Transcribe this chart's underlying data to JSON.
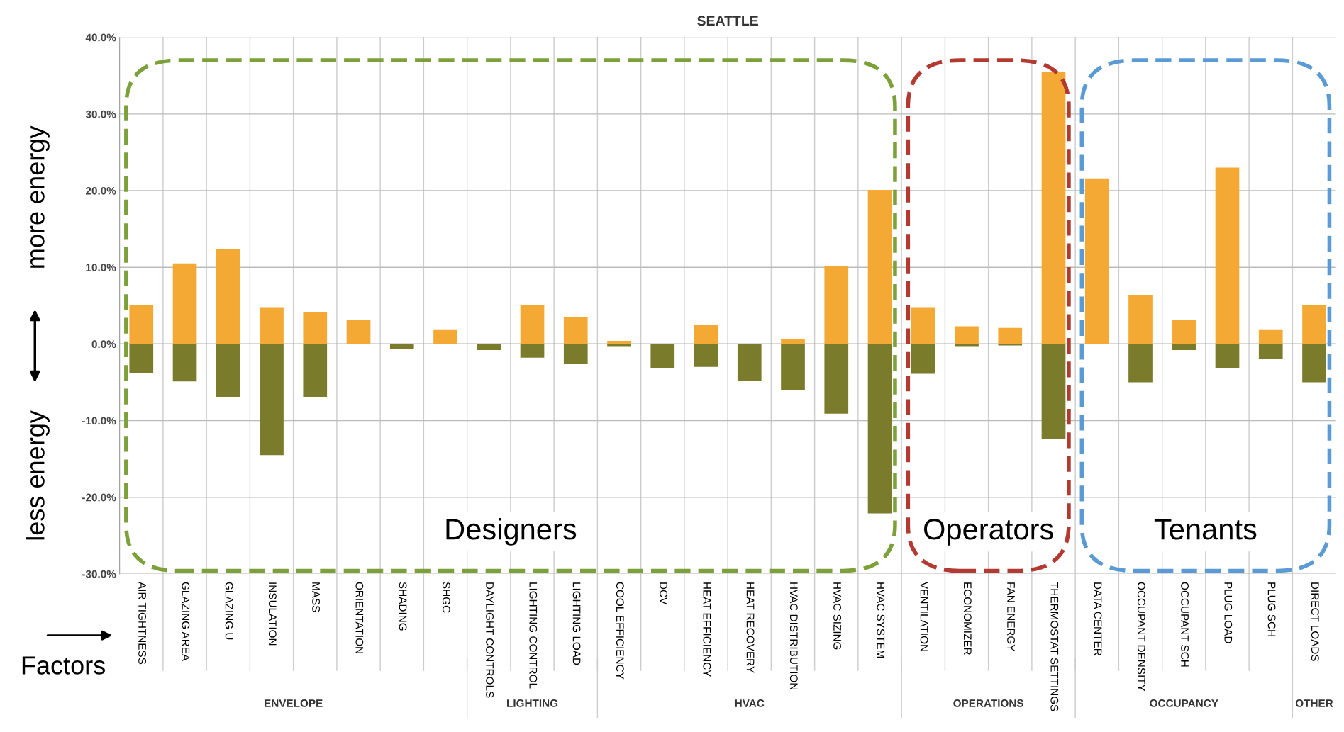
{
  "chart_data": {
    "type": "bar",
    "title": "SEATTLE",
    "categories": [
      "AIR TIGHTNESS",
      "GLAZING AREA",
      "GLAZING U",
      "INSULATION",
      "MASS",
      "ORIENTATION",
      "SHADING",
      "SHGC",
      "DAYLIGHT CONTROLS",
      "LIGHTING CONTROL",
      "LIGHTING LOAD",
      "COOL EFFICIENCY",
      "DCV",
      "HEAT EFFICIENCY",
      "HEAT RECOVERY",
      "HVAC DISTRIBUTION",
      "HVAC SIZING",
      "HVAC SYSTEM",
      "VENTILATION",
      "ECONOMIZER",
      "FAN ENERGY",
      "THERMOSTAT SETTINGS",
      "DATA CENTER",
      "OCCUPANT DENSITY",
      "OCCUPANT SCH",
      "PLUG LOAD",
      "PLUG SCH",
      "DIRECT LOADS"
    ],
    "series": [
      {
        "color": "#f4a935",
        "values": [
          5.1,
          10.5,
          12.4,
          4.8,
          4.1,
          3.1,
          null,
          1.9,
          null,
          5.1,
          3.5,
          0.4,
          null,
          2.5,
          null,
          0.6,
          10.1,
          20.1,
          4.8,
          2.3,
          2.1,
          35.5,
          21.6,
          6.4,
          3.1,
          23.0,
          1.9,
          5.1
        ]
      },
      {
        "color": "#7b7b2c",
        "values": [
          -3.8,
          -4.9,
          -6.9,
          -14.5,
          -6.9,
          null,
          -0.7,
          null,
          -0.8,
          -1.8,
          -2.6,
          -0.3,
          -3.1,
          -3.0,
          -4.8,
          -6.0,
          -9.1,
          -22.1,
          -3.9,
          -0.3,
          -0.2,
          -12.4,
          null,
          -5.0,
          -0.8,
          -3.1,
          -1.9,
          -5.0
        ]
      }
    ],
    "stacked": true,
    "ylim": [
      -30,
      40
    ],
    "yticks": [
      {
        "value": -30,
        "label": "-30.0%"
      },
      {
        "value": -20,
        "label": "-20.0%"
      },
      {
        "value": -10,
        "label": "-10.0%"
      },
      {
        "value": 0,
        "label": "0.0%"
      },
      {
        "value": 10,
        "label": "10.0%"
      },
      {
        "value": 20,
        "label": "20.0%"
      },
      {
        "value": 30,
        "label": "30.0%"
      },
      {
        "value": 40,
        "label": "40.0%"
      }
    ],
    "grid": true,
    "annotations": [
      "more energy",
      "less energy",
      "Factors",
      "Designers",
      "Operators",
      "Tenants",
      "ENVELOPE",
      "LIGHTING",
      "HVAC",
      "OPERATIONS",
      "OCCUPANCY",
      "OTHER"
    ]
  }
}
